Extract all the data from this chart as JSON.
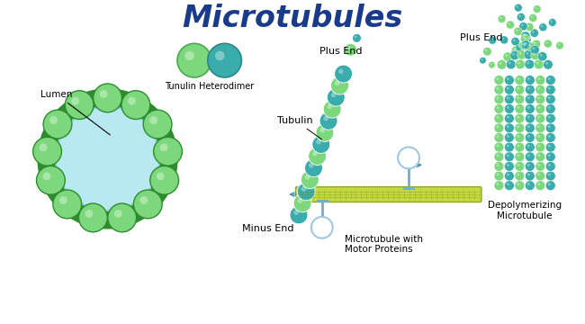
{
  "title": "Microtubules",
  "title_color": "#1a3a8a",
  "title_fontsize": 24,
  "background_color": "#ffffff",
  "green_light": "#7dd87d",
  "green_medium": "#4aab4a",
  "green_dark": "#2e8b2e",
  "teal": "#3aacac",
  "teal_dark": "#2a8888",
  "light_blue": "#b8e8f0",
  "olive_green": "#8aaa3a",
  "motor_blue": "#6ab0d0",
  "labels": {
    "lumen": "Lumen",
    "heterodimer": "Tunulin Heterodimer",
    "tubulin": "Tubulin",
    "plus_end": "Plus End",
    "minus_end": "Minus End",
    "motor": "Microtubule with\nMotor Proteins",
    "depoly": "Depolymerizing\nMicrotubule"
  }
}
